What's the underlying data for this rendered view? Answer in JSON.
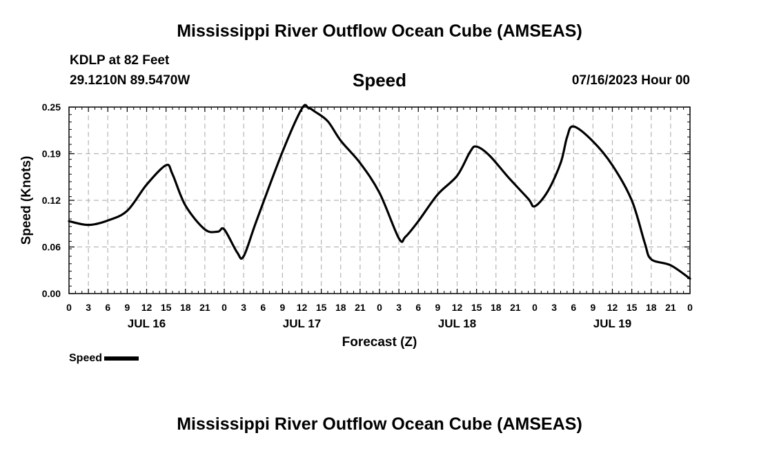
{
  "header": {
    "title": "Mississippi River Outflow Ocean Cube (AMSEAS)",
    "station": "KDLP at 82 Feet",
    "coords": "29.1210N  89.5470W",
    "variable": "Speed",
    "datetime": "07/16/2023 Hour 00"
  },
  "footer": {
    "title": "Mississippi River Outflow Ocean Cube (AMSEAS)"
  },
  "legend": {
    "label": "Speed"
  },
  "chart_data": {
    "type": "line",
    "title": "Speed",
    "xlabel": "Forecast (Z)",
    "ylabel": "Speed (Knots)",
    "ylim": [
      0,
      0.25
    ],
    "yticks": [
      "0.00",
      "0.06",
      "0.12",
      "0.19",
      "0.25"
    ],
    "ytick_values": [
      0.0,
      0.0625,
      0.125,
      0.1875,
      0.25
    ],
    "xlim": [
      0,
      96
    ],
    "xtick_labels": [
      "0",
      "3",
      "6",
      "9",
      "12",
      "15",
      "18",
      "21",
      "0",
      "3",
      "6",
      "9",
      "12",
      "15",
      "18",
      "21",
      "0",
      "3",
      "6",
      "9",
      "12",
      "15",
      "18",
      "21",
      "0",
      "3",
      "6",
      "9",
      "12",
      "15",
      "18",
      "21",
      "0"
    ],
    "day_labels": [
      {
        "label": "JUL 16",
        "hour": 12
      },
      {
        "label": "JUL 17",
        "hour": 36
      },
      {
        "label": "JUL 18",
        "hour": 60
      },
      {
        "label": "JUL 19",
        "hour": 84
      }
    ],
    "grid": true,
    "series": [
      {
        "name": "Speed",
        "color": "#000000",
        "x": [
          0,
          3,
          6,
          9,
          12,
          15,
          16,
          18,
          21,
          23,
          24,
          26,
          27,
          29,
          33,
          36,
          37,
          38,
          40,
          42,
          45,
          48,
          51,
          52,
          54,
          57,
          60,
          62,
          63,
          65,
          68,
          71,
          72,
          74,
          76,
          77,
          78,
          81,
          84,
          87,
          89,
          90,
          93,
          96
        ],
        "y": [
          0.097,
          0.092,
          0.098,
          0.111,
          0.146,
          0.172,
          0.16,
          0.118,
          0.086,
          0.083,
          0.086,
          0.055,
          0.05,
          0.098,
          0.19,
          0.248,
          0.249,
          0.244,
          0.231,
          0.205,
          0.175,
          0.135,
          0.074,
          0.076,
          0.097,
          0.133,
          0.158,
          0.19,
          0.197,
          0.185,
          0.155,
          0.127,
          0.117,
          0.137,
          0.175,
          0.21,
          0.224,
          0.204,
          0.172,
          0.125,
          0.068,
          0.046,
          0.038,
          0.02
        ]
      }
    ]
  }
}
